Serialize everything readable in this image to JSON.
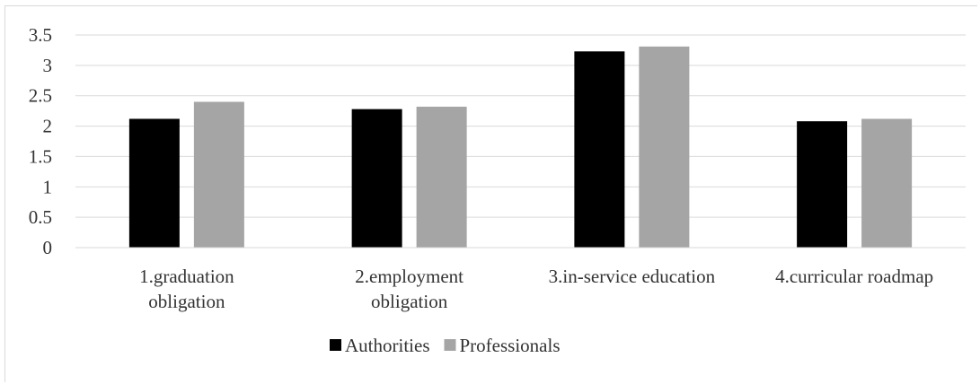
{
  "chart_data": {
    "type": "bar",
    "title": "",
    "xlabel": "",
    "ylabel": "",
    "ylim": [
      0,
      3.5
    ],
    "yticks": [
      "0",
      "0.5",
      "1",
      "1.5",
      "2",
      "2.5",
      "3",
      "3.5"
    ],
    "grid": true,
    "legend_position": "bottom",
    "categories": [
      [
        "1.graduation",
        "obligation"
      ],
      [
        "2.employment",
        "obligation"
      ],
      [
        "3.in-service education"
      ],
      [
        "4.curricular roadmap"
      ]
    ],
    "series": [
      {
        "name": "Authorities",
        "color": "#000000",
        "values": [
          2.12,
          2.28,
          3.23,
          2.08
        ]
      },
      {
        "name": "Professionals",
        "color": "#a5a5a5",
        "values": [
          2.4,
          2.32,
          3.31,
          2.12
        ]
      }
    ]
  }
}
